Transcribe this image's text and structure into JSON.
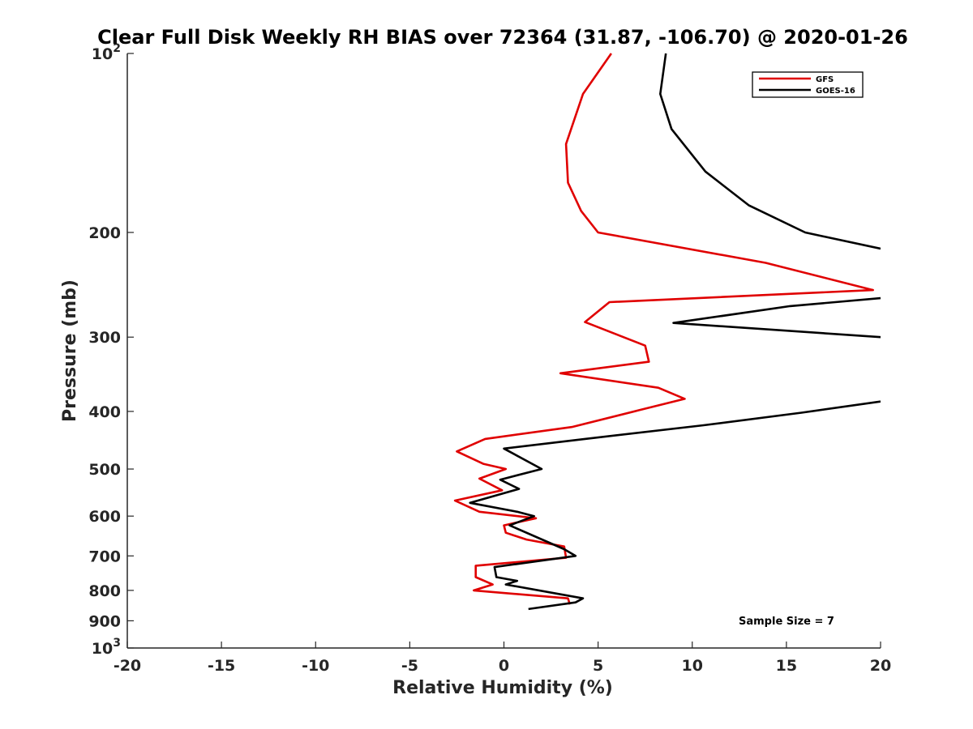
{
  "chart_data": {
    "type": "line",
    "title": "Clear Full Disk Weekly RH BIAS over 72364 (31.87, -106.70) @ 2020-01-26",
    "xlabel": "Relative Humidity (%)",
    "ylabel": "Pressure (mb)",
    "xlim": [
      -20,
      20
    ],
    "ylim": [
      100,
      1000
    ],
    "y_scale": "log",
    "y_reversed": true,
    "grid": false,
    "x_ticks": [
      "-20",
      "-15",
      "-10",
      "-5",
      "0",
      "5",
      "10",
      "15",
      "20"
    ],
    "y_ticks": [
      {
        "value": 100,
        "base": "10",
        "exp": "2"
      },
      {
        "value": 200,
        "base": "200",
        "exp": ""
      },
      {
        "value": 300,
        "base": "300",
        "exp": ""
      },
      {
        "value": 400,
        "base": "400",
        "exp": ""
      },
      {
        "value": 500,
        "base": "500",
        "exp": ""
      },
      {
        "value": 600,
        "base": "600",
        "exp": ""
      },
      {
        "value": 700,
        "base": "700",
        "exp": ""
      },
      {
        "value": 800,
        "base": "800",
        "exp": ""
      },
      {
        "value": 900,
        "base": "900",
        "exp": ""
      },
      {
        "value": 1000,
        "base": "10",
        "exp": "3"
      }
    ],
    "legend_position": "top-right",
    "series": [
      {
        "name": "GFS",
        "color": "#e00000",
        "x": [
          5.7,
          4.2,
          3.3,
          3.4,
          4.1,
          5.0,
          13.9,
          19.6,
          5.6,
          4.3,
          7.5,
          7.7,
          3.0,
          8.2,
          9.6,
          7.2,
          3.6,
          -1.0,
          -2.5,
          -1.1,
          0.1,
          -1.3,
          -0.1,
          -2.6,
          -1.3,
          1.7,
          0.0,
          0.1,
          1.2,
          3.2,
          3.3,
          -1.5,
          -1.5,
          -0.6,
          -1.6,
          3.4,
          3.5
        ],
        "y": [
          100,
          117,
          142,
          165,
          184,
          200,
          225,
          250,
          262,
          283,
          310,
          330,
          345,
          365,
          381,
          398,
          425,
          445,
          467,
          490,
          500,
          519,
          543,
          565,
          590,
          605,
          622,
          640,
          657,
          675,
          705,
          727,
          760,
          782,
          800,
          825,
          845
        ]
      },
      {
        "name": "GOES-16",
        "color": "#000000",
        "x": [
          8.6,
          8.3,
          8.9,
          10.7,
          13.0,
          16.0,
          20.0,
          null,
          20.0,
          15.2,
          9.0,
          20.0,
          null,
          20.0,
          15.8,
          10.6,
          4.3,
          0.0,
          2.0,
          -0.2,
          0.8,
          -1.8,
          0.7,
          1.6,
          0.3,
          3.2,
          3.8,
          -0.5,
          -0.4,
          0.7,
          0.1,
          4.2,
          3.8,
          1.3
        ],
        "y": [
          100,
          117,
          134,
          158,
          180,
          200,
          213,
          null,
          258,
          266,
          284,
          300,
          null,
          385,
          402,
          422,
          445,
          462,
          500,
          521,
          540,
          570,
          590,
          600,
          622,
          682,
          700,
          731,
          760,
          771,
          782,
          825,
          838,
          860
        ]
      }
    ],
    "annotations": [
      "Sample Size = 7"
    ]
  }
}
